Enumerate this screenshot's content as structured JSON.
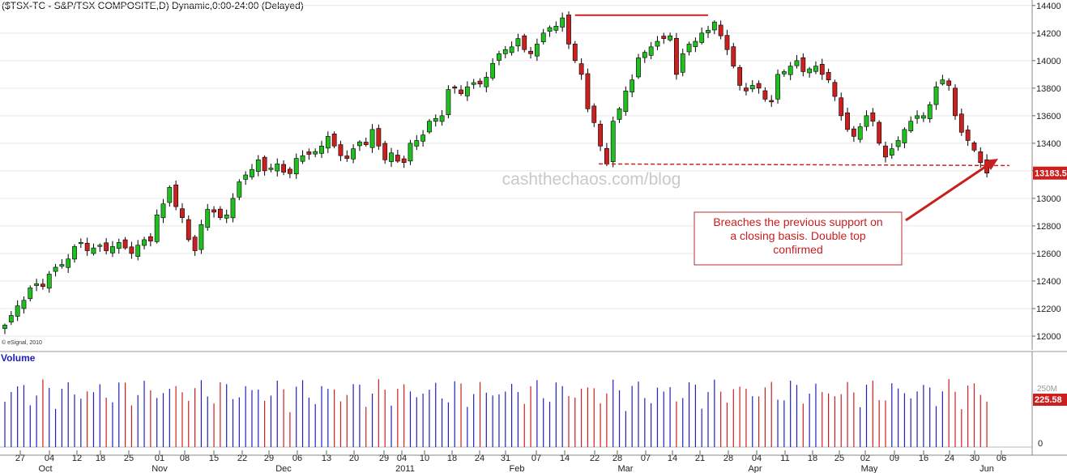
{
  "header": {
    "title": "($TSX-TC - S&P/TSX COMPOSITE,D) Dynamic,0:00-24:00 (Delayed)"
  },
  "watermark": "cashthechaos.com/blog",
  "copyright": "© eSignal, 2010",
  "annotation": {
    "lines": [
      "Breaches the previous support on",
      "a closing basis. Double top",
      "confirmed"
    ]
  },
  "volume_panel": {
    "title": "Volume",
    "last_label": "225.58",
    "tick_labels": [
      "250M",
      "0"
    ]
  },
  "colors": {
    "up": "#1fbf1f",
    "down": "#cc1f1f",
    "volume_up": "#1f1fbf",
    "volume_down": "#cc1f1f",
    "resistance": "#cc1f1f",
    "support": "#cc1f1f",
    "title_blue": "#1f1fbf"
  },
  "chart_data": {
    "type": "candlestick",
    "price_axis": {
      "ticks": [
        12000,
        12200,
        12400,
        12600,
        12800,
        13000,
        13200,
        13400,
        13600,
        13800,
        14000,
        14200,
        14400
      ],
      "ylim": [
        11900,
        14440
      ],
      "last_price": 13183.5,
      "last_label": "13183.5"
    },
    "x_axis": {
      "day_labels": [
        "27",
        "04",
        "12",
        "18",
        "25",
        "01",
        "08",
        "15",
        "22",
        "29",
        "06",
        "13",
        "20",
        "29",
        "04",
        "10",
        "18",
        "24",
        "31",
        "07",
        "14",
        "22",
        "28",
        "07",
        "14",
        "21",
        "28",
        "04",
        "11",
        "18",
        "25",
        "02",
        "09",
        "16",
        "24",
        "30",
        "06"
      ],
      "month_labels": [
        "Oct",
        "Nov",
        "Dec",
        "2011",
        "Feb",
        "Mar",
        "Apr",
        "May",
        "Jun"
      ]
    },
    "closes": [
      12080,
      12150,
      12220,
      12260,
      12350,
      12380,
      12360,
      12450,
      12500,
      12520,
      12560,
      12650,
      12680,
      12620,
      12640,
      12660,
      12620,
      12650,
      12680,
      12640,
      12600,
      12660,
      12700,
      12690,
      12880,
      12960,
      13080,
      12940,
      12860,
      12700,
      12620,
      12810,
      12920,
      12900,
      12860,
      12880,
      13000,
      13120,
      13170,
      13210,
      13280,
      13200,
      13220,
      13250,
      13190,
      13180,
      13290,
      13310,
      13320,
      13340,
      13380,
      13450,
      13380,
      13310,
      13290,
      13360,
      13410,
      13390,
      13500,
      13380,
      13280,
      13330,
      13270,
      13260,
      13400,
      13420,
      13460,
      13560,
      13580,
      13600,
      13790,
      13800,
      13760,
      13810,
      13840,
      13830,
      13880,
      13980,
      14050,
      14080,
      14100,
      14160,
      14080,
      14050,
      14120,
      14200,
      14240,
      14250,
      14310,
      14120,
      14000,
      13900,
      13650,
      13550,
      13380,
      13250,
      13560,
      13650,
      13780,
      13860,
      14020,
      14060,
      14100,
      14140,
      14160,
      14180,
      13900,
      14050,
      14120,
      14140,
      14200,
      14220,
      14280,
      14180,
      14080,
      13960,
      13820,
      13780,
      13820,
      13800,
      13720,
      13700,
      13900,
      13920,
      13960,
      14000,
      13920,
      13940,
      13960,
      13900,
      13860,
      13740,
      13600,
      13500,
      13450,
      13520,
      13600,
      13560,
      13400,
      13300,
      13360,
      13420,
      13500,
      13560,
      13600,
      13600,
      13680,
      13810,
      13860,
      13820,
      13600,
      13480,
      13420,
      13350,
      13260,
      13183.5
    ],
    "resistance": {
      "start_index": 90,
      "end_index": 111,
      "value": 14330
    },
    "support": {
      "start_index": 94,
      "end_index": 156,
      "value": 13250
    }
  }
}
